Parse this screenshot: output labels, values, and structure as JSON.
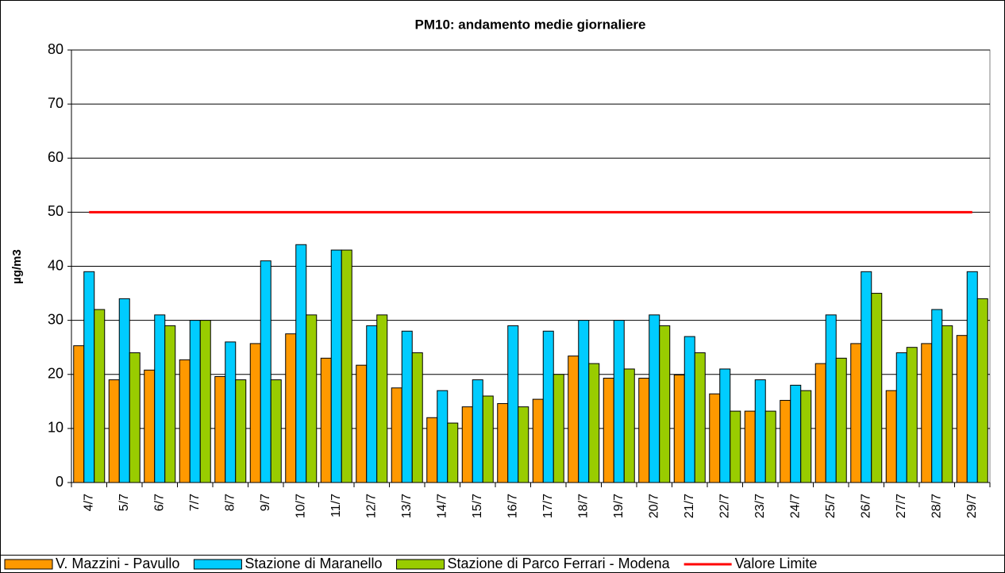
{
  "chart_data": {
    "type": "bar",
    "title": "PM10: andamento medie giornaliere",
    "y_label": "µg/m3",
    "categories": [
      "4/7",
      "5/7",
      "6/7",
      "7/7",
      "8/7",
      "9/7",
      "10/7",
      "11/7",
      "12/7",
      "13/7",
      "14/7",
      "15/7",
      "16/7",
      "17/7",
      "18/7",
      "19/7",
      "20/7",
      "21/7",
      "22/7",
      "23/7",
      "24/7",
      "25/7",
      "26/7",
      "27/7",
      "28/7",
      "29/7"
    ],
    "series": [
      {
        "name": "V. Mazzini - Pavullo",
        "color": "#ff9900",
        "values": [
          25.3,
          19,
          20.8,
          22.7,
          19.6,
          25.7,
          27.5,
          23,
          21.7,
          17.5,
          12,
          14,
          14.6,
          15.4,
          23.4,
          19.3,
          19.3,
          19.9,
          16.4,
          13.2,
          15.2,
          22,
          25.7,
          17,
          25.7,
          27.2
        ]
      },
      {
        "name": "Stazione di Maranello",
        "color": "#00ccff",
        "values": [
          39,
          34,
          31,
          30,
          26,
          41,
          44,
          43,
          29,
          28,
          17,
          19,
          29,
          28,
          30,
          30,
          31,
          27,
          21,
          19,
          18,
          31,
          39,
          24,
          32,
          39
        ]
      },
      {
        "name": "Stazione di Parco Ferrari - Modena",
        "color": "#99cc00",
        "values": [
          32,
          24,
          29,
          30,
          19,
          19,
          31,
          43,
          31,
          24,
          11,
          16,
          14,
          20,
          22,
          21,
          29,
          24,
          13.2,
          13.2,
          17,
          23,
          35,
          25,
          29,
          34
        ]
      },
      {
        "name": "Valore Limite",
        "color": "#ff0000",
        "type": "line",
        "values": [
          50,
          50,
          50,
          50,
          50,
          50,
          50,
          50,
          50,
          50,
          50,
          50,
          50,
          50,
          50,
          50,
          50,
          50,
          50,
          50,
          50,
          50,
          50,
          50,
          50,
          50
        ]
      }
    ],
    "ylim": [
      0,
      80
    ],
    "yticks": [
      0,
      10,
      20,
      30,
      40,
      50,
      60,
      70,
      80
    ],
    "grid": true
  }
}
